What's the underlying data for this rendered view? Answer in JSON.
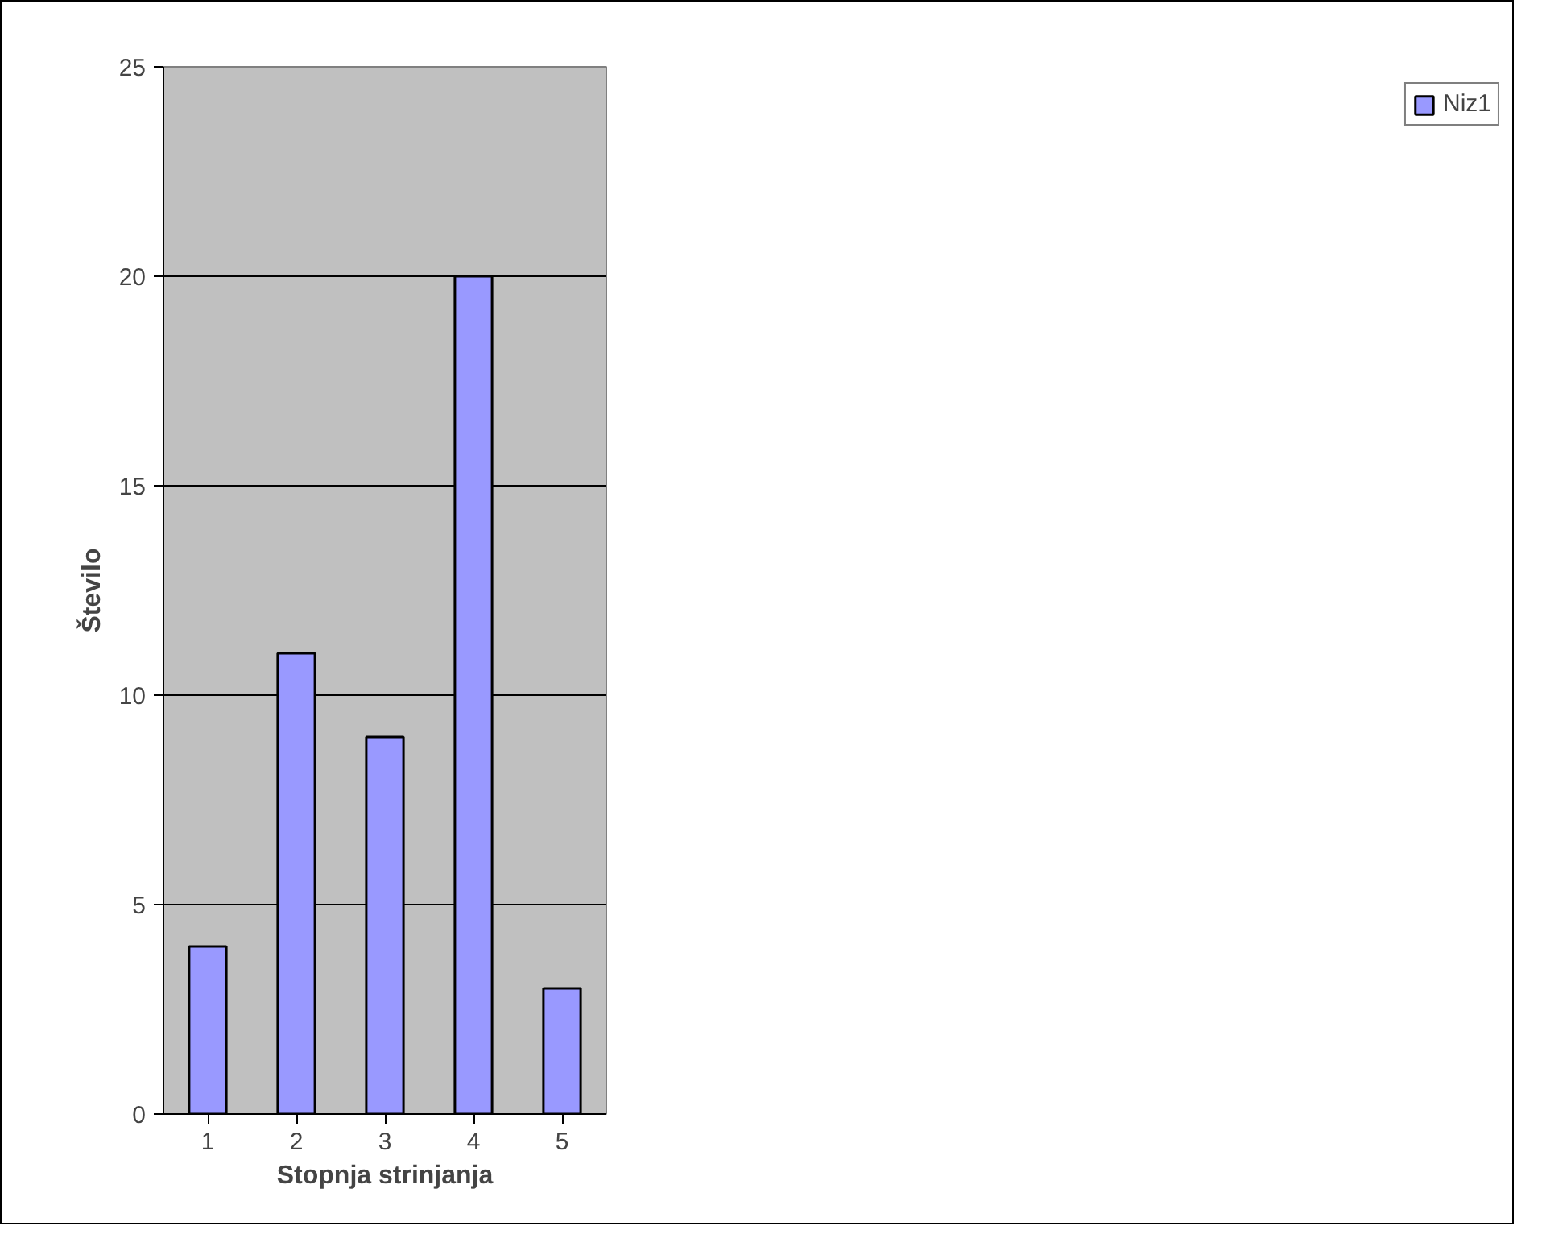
{
  "chart_data": {
    "type": "bar",
    "xlabel": "Stopnja strinjanja",
    "ylabel": "Število",
    "categories": [
      "1",
      "2",
      "3",
      "4",
      "5"
    ],
    "series": [
      {
        "name": "Niz1",
        "color": "#9999ff",
        "values": [
          4,
          11,
          9,
          20,
          3
        ]
      }
    ],
    "ylim": [
      0,
      25
    ],
    "yticks": [
      0,
      5,
      10,
      15,
      20,
      25
    ],
    "grid": "y",
    "legend": "right"
  }
}
